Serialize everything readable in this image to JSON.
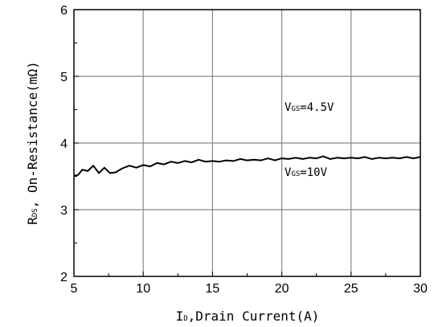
{
  "chart_data": {
    "type": "line",
    "title": "",
    "xlabel": {
      "main": "I",
      "sub": "D",
      "rest": ",Drain Current(A)"
    },
    "ylabel": {
      "main": "R",
      "sub": "DS",
      "rest": ", On-Resistance(mΩ)"
    },
    "xlim": [
      5,
      30
    ],
    "ylim": [
      2,
      6
    ],
    "xticks": [
      5,
      10,
      15,
      20,
      25,
      30
    ],
    "yticks": [
      2,
      3,
      4,
      5,
      6
    ],
    "xtick_labels": [
      "5",
      "10",
      "15",
      "20",
      "25",
      "30"
    ],
    "ytick_labels": [
      "2",
      "3",
      "4",
      "5",
      "6"
    ],
    "grid": true,
    "annotations": [
      {
        "main": "V",
        "sub": "GS",
        "rest": "=4.5V"
      },
      {
        "main": "V",
        "sub": "GS",
        "rest": "=10V"
      }
    ],
    "series": [
      {
        "x": [
          5.0,
          5.3,
          5.6,
          6.0,
          6.4,
          6.8,
          7.2,
          7.6,
          8.0,
          8.5,
          9.0,
          9.5,
          10.0,
          10.5,
          11.0,
          11.5,
          12.0,
          12.5,
          13.0,
          13.5,
          14.0,
          14.5,
          15.0,
          15.5,
          16.0,
          16.5,
          17.0,
          17.5,
          18.0,
          18.5,
          19.0,
          19.5,
          20.0,
          20.5,
          21.0,
          21.5,
          22.0,
          22.5,
          23.0,
          23.5,
          24.0,
          24.5,
          25.0,
          25.5,
          26.0,
          26.5,
          27.0,
          27.5,
          28.0,
          28.5,
          29.0,
          29.5,
          30.0
        ],
        "values": [
          3.51,
          3.52,
          3.6,
          3.58,
          3.66,
          3.55,
          3.63,
          3.55,
          3.56,
          3.62,
          3.66,
          3.63,
          3.67,
          3.65,
          3.7,
          3.68,
          3.72,
          3.7,
          3.73,
          3.71,
          3.75,
          3.72,
          3.73,
          3.72,
          3.74,
          3.73,
          3.76,
          3.74,
          3.75,
          3.74,
          3.77,
          3.74,
          3.77,
          3.76,
          3.78,
          3.76,
          3.78,
          3.77,
          3.8,
          3.76,
          3.78,
          3.77,
          3.78,
          3.77,
          3.79,
          3.76,
          3.78,
          3.77,
          3.78,
          3.77,
          3.79,
          3.77,
          3.79
        ]
      }
    ]
  },
  "style": {
    "line_color": "#000000",
    "grid_color": "#888888",
    "axis_color": "#000000"
  }
}
